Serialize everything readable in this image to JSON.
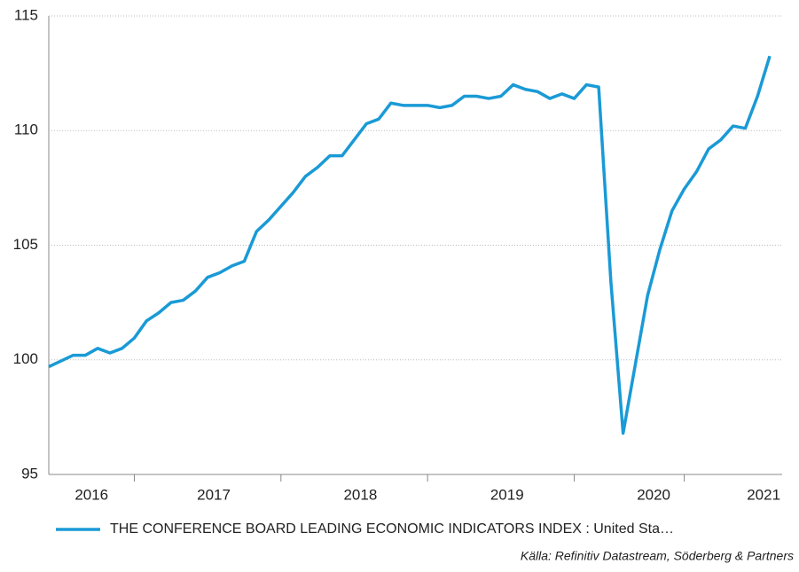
{
  "chart_data": {
    "type": "line",
    "categories": [
      null,
      null,
      null,
      "2016",
      null,
      null,
      null,
      null,
      null,
      null,
      null,
      null,
      null,
      "2017",
      null,
      null,
      null,
      null,
      null,
      null,
      null,
      null,
      null,
      null,
      null,
      "2018",
      null,
      null,
      null,
      null,
      null,
      null,
      null,
      null,
      null,
      null,
      null,
      "2019",
      null,
      null,
      null,
      null,
      null,
      null,
      null,
      null,
      null,
      null,
      null,
      "2020",
      null,
      null,
      null,
      null,
      null,
      null,
      null,
      null,
      "2021",
      null
    ],
    "series": [
      {
        "name": "THE CONFERENCE BOARD LEADING ECONOMIC INDICATORS INDEX : United Sta…",
        "color": "#1a9ad6",
        "values": [
          99.7,
          99.95,
          100.2,
          100.2,
          100.5,
          100.3,
          100.5,
          100.95,
          101.7,
          102.05,
          102.5,
          102.6,
          103.0,
          103.6,
          103.8,
          104.1,
          104.3,
          105.6,
          106.1,
          106.7,
          107.3,
          108.0,
          108.4,
          108.9,
          108.9,
          109.6,
          110.3,
          110.5,
          111.2,
          111.1,
          111.1,
          111.1,
          111.0,
          111.1,
          111.5,
          111.5,
          111.4,
          111.5,
          112.0,
          111.8,
          111.7,
          111.4,
          111.6,
          111.4,
          112.0,
          111.9,
          103.4,
          96.8,
          99.8,
          102.8,
          104.8,
          106.5,
          107.45,
          108.2,
          109.2,
          109.6,
          110.2,
          110.1,
          111.5,
          113.25
        ]
      }
    ],
    "ylim": [
      95,
      115
    ],
    "yticks": [
      95,
      100,
      105,
      110,
      115
    ],
    "grid": true,
    "source": "Källa: Refinitiv Datastream, Söderberg & Partners"
  }
}
